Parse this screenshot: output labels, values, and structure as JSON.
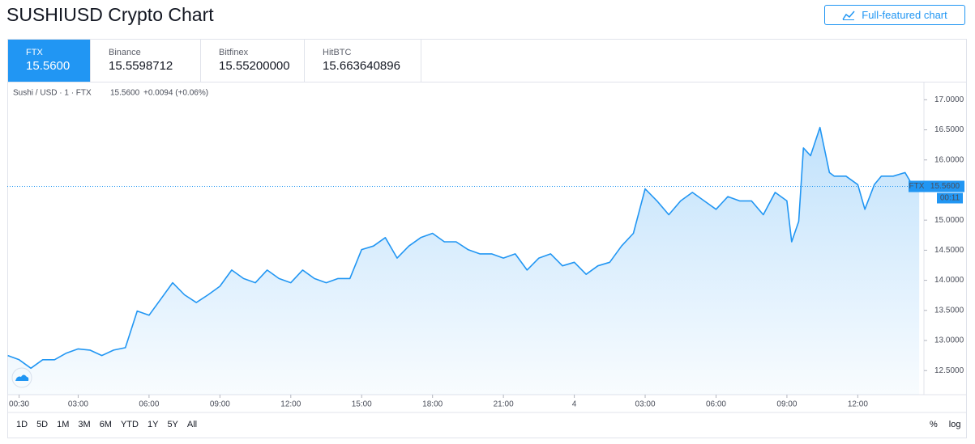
{
  "header": {
    "title": "SUSHIUSD Crypto Chart",
    "button": "Full-featured chart"
  },
  "exchanges": [
    {
      "name": "FTX",
      "price": "15.5600"
    },
    {
      "name": "Binance",
      "price": "15.5598712"
    },
    {
      "name": "Bitfinex",
      "price": "15.55200000"
    },
    {
      "name": "HitBTC",
      "price": "15.663640896"
    }
  ],
  "chart_data": {
    "type": "line",
    "legend": {
      "symbol": "Sushi / USD · 1 · FTX",
      "price": "15.5600",
      "change": "+0.0094 (+0.06%)"
    },
    "x": [
      0.02,
      0.5,
      1,
      1.5,
      2,
      2.5,
      3,
      3.5,
      4,
      4.5,
      5,
      5.5,
      6,
      6.5,
      7,
      7.5,
      8,
      8.5,
      9,
      9.5,
      10,
      10.5,
      11,
      11.5,
      12,
      12.5,
      13,
      13.5,
      14,
      14.5,
      15,
      15.5,
      16,
      16.5,
      17,
      17.5,
      18,
      18.5,
      19,
      19.5,
      20,
      20.5,
      21,
      21.5,
      22,
      22.5,
      23,
      23.5,
      24,
      24.5,
      25,
      25.5,
      26,
      26.5,
      27,
      27.5,
      28,
      28.5,
      29,
      29.5,
      30,
      30.5,
      31,
      31.5,
      32,
      32.5,
      33,
      33.2,
      33.5,
      33.7,
      34,
      34.4,
      34.8,
      35,
      35.5,
      36,
      36.3,
      36.7,
      37,
      37.5,
      38,
      38.3,
      38.6
    ],
    "series": [
      {
        "name": "FTX",
        "color": "#2196f3",
        "values": [
          12.75,
          12.68,
          12.54,
          12.68,
          12.68,
          12.79,
          12.86,
          12.84,
          12.75,
          12.84,
          12.88,
          13.49,
          13.42,
          13.69,
          13.96,
          13.76,
          13.63,
          13.76,
          13.9,
          14.17,
          14.03,
          13.96,
          14.17,
          14.03,
          13.96,
          14.17,
          14.03,
          13.96,
          14.03,
          14.03,
          14.51,
          14.57,
          14.71,
          14.37,
          14.57,
          14.71,
          14.78,
          14.64,
          14.64,
          14.51,
          14.44,
          14.44,
          14.37,
          14.44,
          14.17,
          14.37,
          14.44,
          14.24,
          14.3,
          14.1,
          14.24,
          14.3,
          14.57,
          14.78,
          15.52,
          15.32,
          15.09,
          15.32,
          15.46,
          15.32,
          15.18,
          15.39,
          15.32,
          15.32,
          15.09,
          15.46,
          15.32,
          14.64,
          14.98,
          16.2,
          16.07,
          16.54,
          15.79,
          15.73,
          15.73,
          15.59,
          15.18,
          15.59,
          15.73,
          15.73,
          15.79,
          15.59,
          15.56
        ]
      }
    ],
    "xlim": [
      0,
      38.8
    ],
    "ylim": [
      12.1,
      17.3
    ],
    "xticks": [
      {
        "value": 0.5,
        "label": "00:30"
      },
      {
        "value": 3,
        "label": "03:00"
      },
      {
        "value": 6,
        "label": "06:00"
      },
      {
        "value": 9,
        "label": "09:00"
      },
      {
        "value": 12,
        "label": "12:00"
      },
      {
        "value": 15,
        "label": "15:00"
      },
      {
        "value": 18,
        "label": "18:00"
      },
      {
        "value": 21,
        "label": "21:00"
      },
      {
        "value": 24,
        "label": "4"
      },
      {
        "value": 27,
        "label": "03:00"
      },
      {
        "value": 30,
        "label": "06:00"
      },
      {
        "value": 33,
        "label": "09:00"
      },
      {
        "value": 36,
        "label": "12:00"
      }
    ],
    "yticks": [
      {
        "value": 12.5,
        "label": "12.5000"
      },
      {
        "value": 13,
        "label": "13.0000"
      },
      {
        "value": 13.5,
        "label": "13.5000"
      },
      {
        "value": 14,
        "label": "14.0000"
      },
      {
        "value": 14.5,
        "label": "14.5000"
      },
      {
        "value": 15,
        "label": "15.0000"
      },
      {
        "value": 15.5,
        "label": "15.5000"
      },
      {
        "value": 16,
        "label": "16.0000"
      },
      {
        "value": 16.5,
        "label": "16.5000"
      },
      {
        "value": 17,
        "label": "17.0000"
      }
    ],
    "price_line": {
      "value": 15.56,
      "label": "15.5600",
      "tag": "FTX",
      "countdown": "00:11"
    }
  },
  "ranges": [
    "1D",
    "5D",
    "1M",
    "3M",
    "6M",
    "YTD",
    "1Y",
    "5Y",
    "All"
  ],
  "scale_options": [
    "%",
    "log"
  ]
}
